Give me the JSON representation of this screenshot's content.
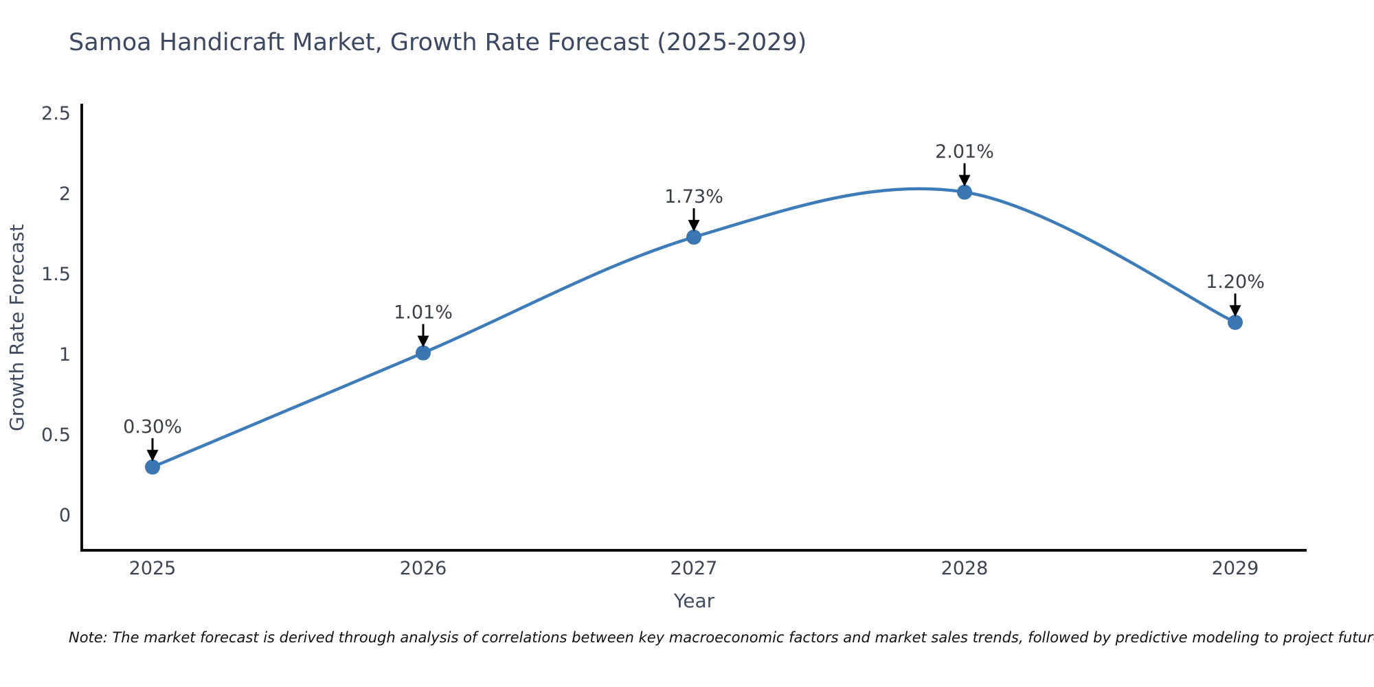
{
  "title": "Samoa Handicraft Market, Growth Rate Forecast (2025-2029)",
  "note": "Note: The market forecast is derived through analysis of correlations between key macroeconomic factors and market sales trends, followed by predictive modeling to project future sales",
  "chart_data": {
    "type": "line",
    "title": "Samoa Handicraft Market, Growth Rate Forecast (2025-2029)",
    "xlabel": "Year",
    "ylabel": "Growth Rate Forecast",
    "categories": [
      "2025",
      "2026",
      "2027",
      "2028",
      "2029"
    ],
    "x": [
      2025,
      2026,
      2027,
      2028,
      2029
    ],
    "values": [
      0.3,
      1.01,
      1.73,
      2.01,
      1.2
    ],
    "point_labels": [
      "0.30%",
      "1.01%",
      "1.73%",
      "2.01%",
      "1.20%"
    ],
    "ylim": [
      0,
      2.5
    ],
    "yticks": [
      0,
      0.5,
      1,
      1.5,
      2,
      2.5
    ],
    "ytick_labels": [
      "0",
      "0.5",
      "1",
      "1.5",
      "2",
      "2.5"
    ],
    "grid": false,
    "legend": "none",
    "smooth_curve": true,
    "colors": {
      "line": "#3d7cb8",
      "marker": "#3a77b2",
      "axis": "#0d0d0d",
      "tick_text": "#3d4554",
      "axis_label_text": "#3f4b61",
      "annotation_text": "#3a3f47",
      "annotation_arrow": "#000000",
      "title_text": "#3b4861",
      "background": "#ffffff"
    }
  }
}
